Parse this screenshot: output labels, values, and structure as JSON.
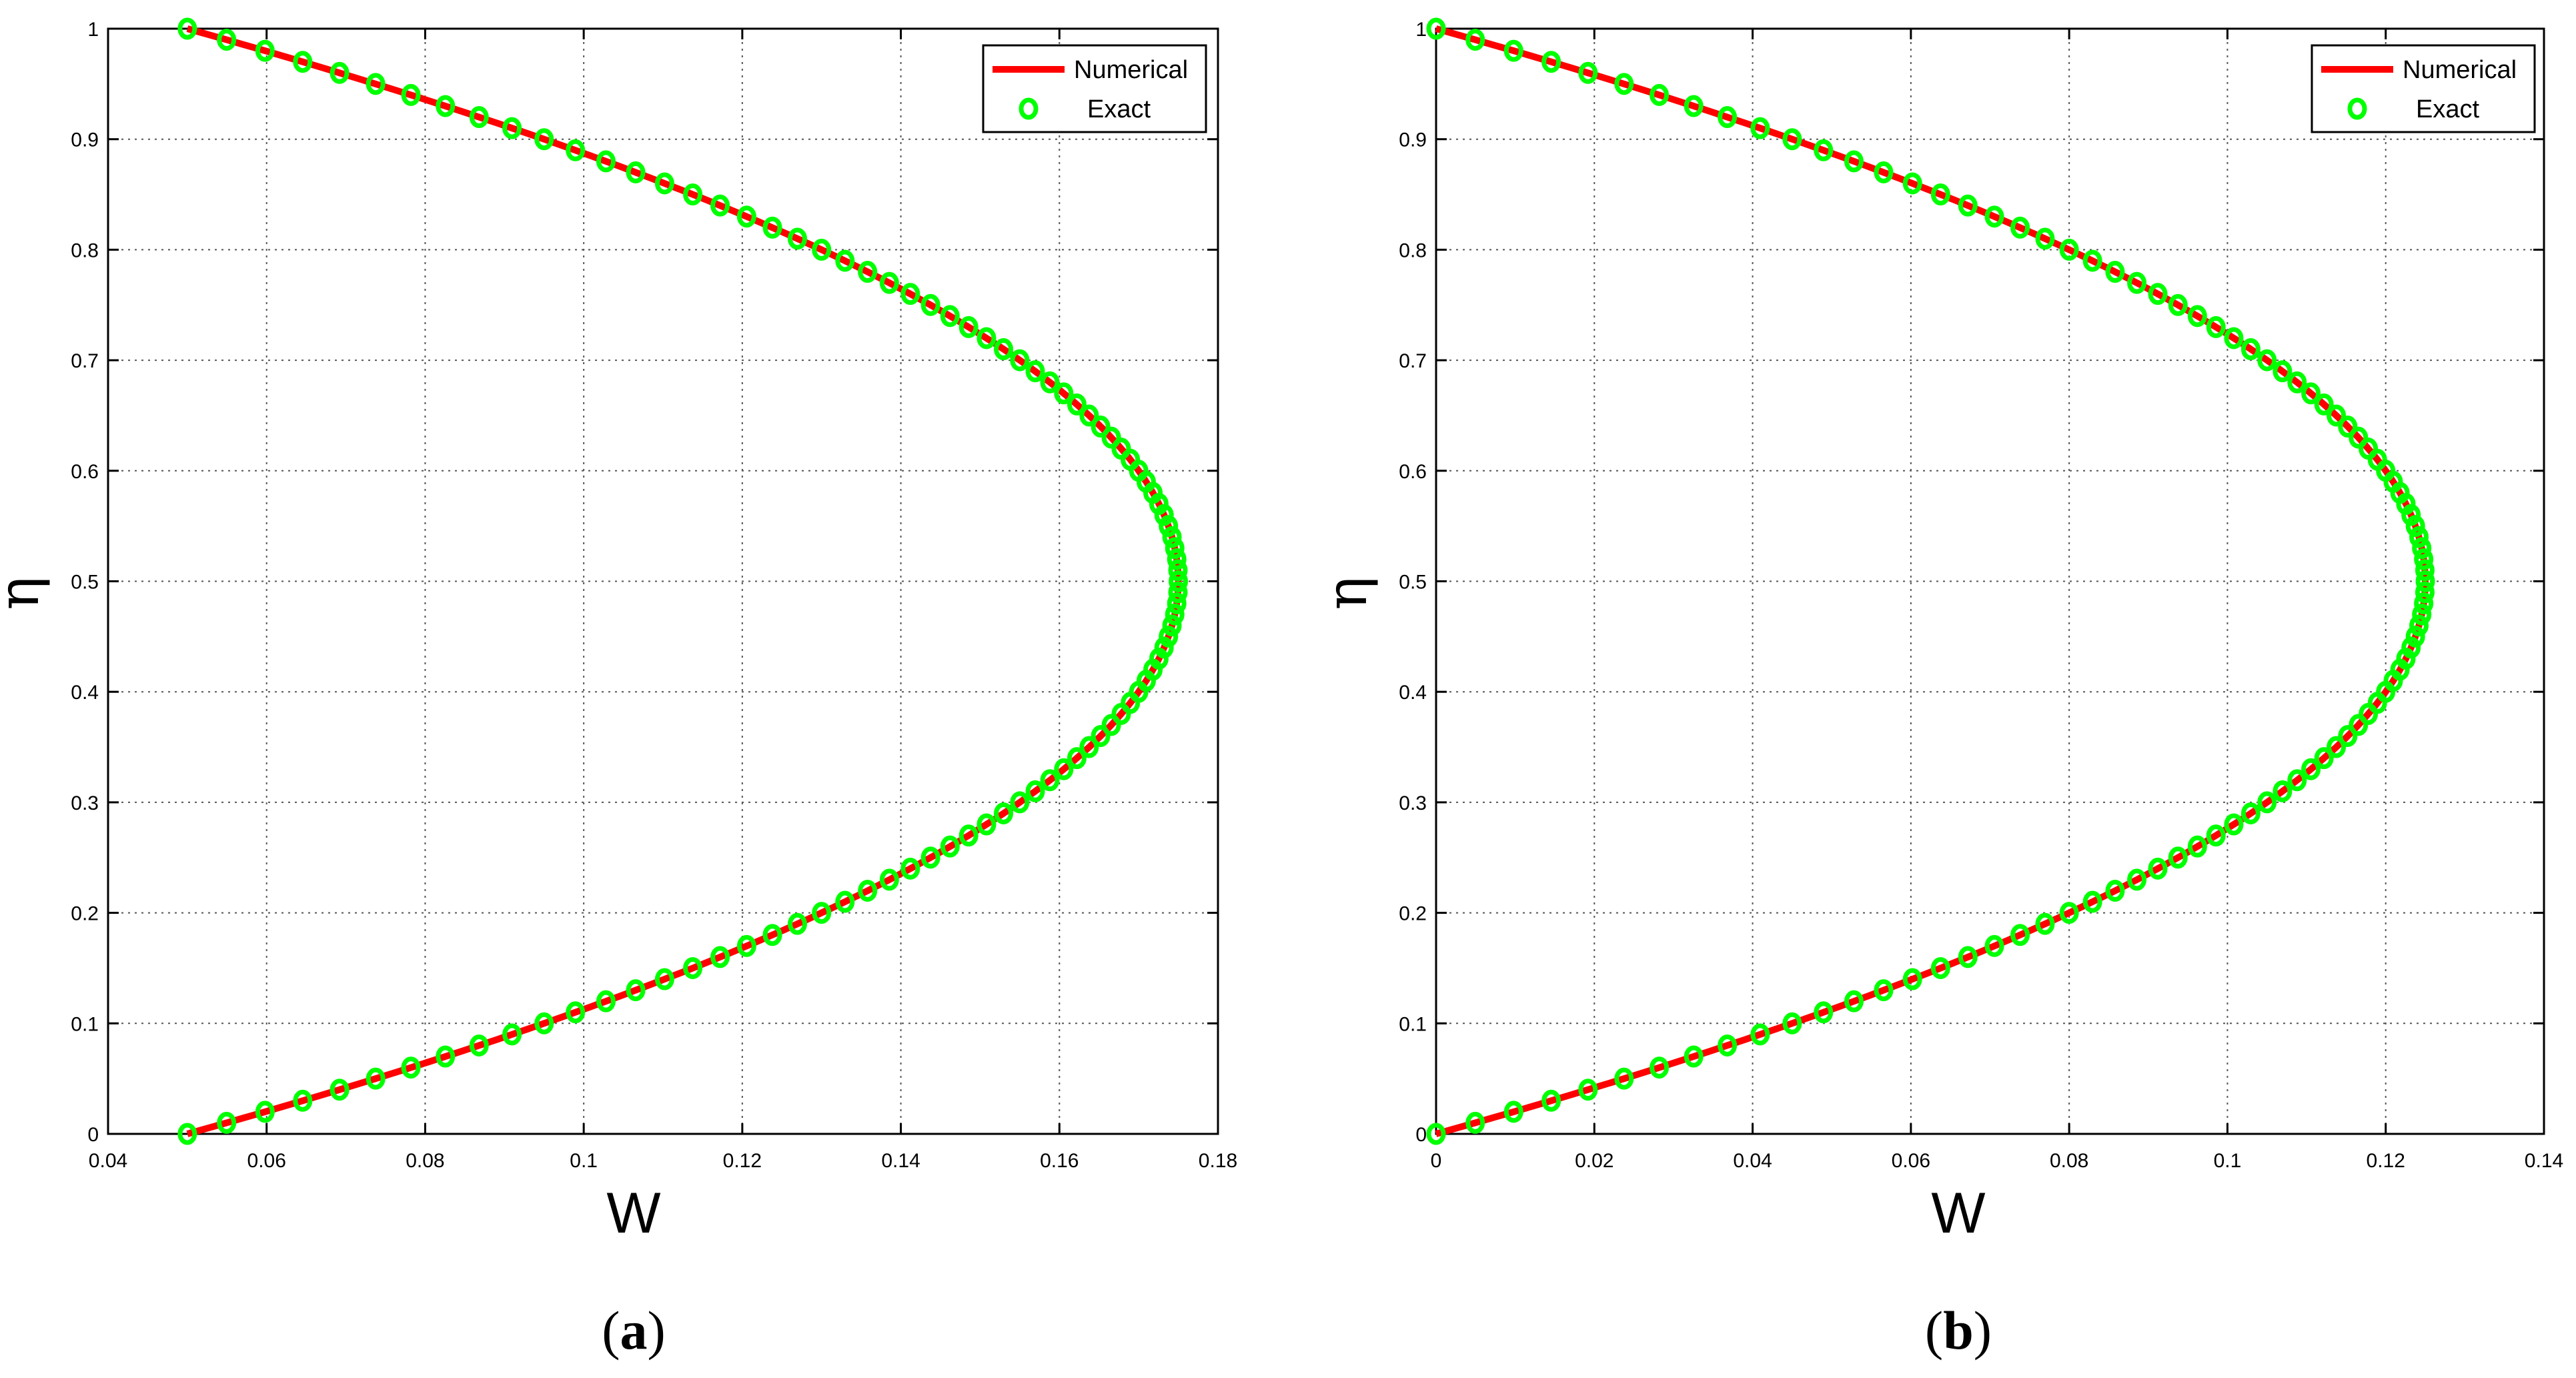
{
  "chart_data": [
    {
      "type": "line",
      "panel_label": {
        "open": "(",
        "letter": "a",
        "close": ")"
      },
      "xlabel": "W",
      "ylabel": "η",
      "xlim": [
        0.04,
        0.18
      ],
      "ylim": [
        0,
        1
      ],
      "xticks": [
        "0.04",
        "0.06",
        "0.08",
        "0.1",
        "0.12",
        "0.14",
        "0.16",
        "0.18"
      ],
      "yticks": [
        "0",
        "0.1",
        "0.2",
        "0.3",
        "0.4",
        "0.5",
        "0.6",
        "0.7",
        "0.8",
        "0.9",
        "1"
      ],
      "grid": true,
      "legend_position": "top-right",
      "series": [
        {
          "name": "Numerical",
          "style": "line",
          "color": "#ff0000",
          "function": "W = 0.05 + 0.5*eta*(1-eta)",
          "eta_range": [
            0,
            1
          ]
        },
        {
          "name": "Exact",
          "style": "circle-marker",
          "color": "#00ff00",
          "function": "W = 0.05 + 0.5*eta*(1-eta)",
          "eta_range": [
            0,
            1
          ],
          "eta_step": 0.01
        }
      ]
    },
    {
      "type": "line",
      "panel_label": {
        "open": "(",
        "letter": "b",
        "close": ")"
      },
      "xlabel": "W",
      "ylabel": "η",
      "xlim": [
        0,
        0.14
      ],
      "ylim": [
        0,
        1
      ],
      "xticks": [
        "0",
        "0.02",
        "0.04",
        "0.06",
        "0.08",
        "0.1",
        "0.12",
        "0.14"
      ],
      "yticks": [
        "0",
        "0.1",
        "0.2",
        "0.3",
        "0.4",
        "0.5",
        "0.6",
        "0.7",
        "0.8",
        "0.9",
        "1"
      ],
      "grid": true,
      "legend_position": "top-right",
      "series": [
        {
          "name": "Numerical",
          "style": "line",
          "color": "#ff0000",
          "function": "W = 0.5*eta*(1-eta)",
          "eta_range": [
            0,
            1
          ]
        },
        {
          "name": "Exact",
          "style": "circle-marker",
          "color": "#00ff00",
          "function": "W = 0.5*eta*(1-eta)",
          "eta_range": [
            0,
            1
          ],
          "eta_step": 0.01
        }
      ]
    }
  ]
}
